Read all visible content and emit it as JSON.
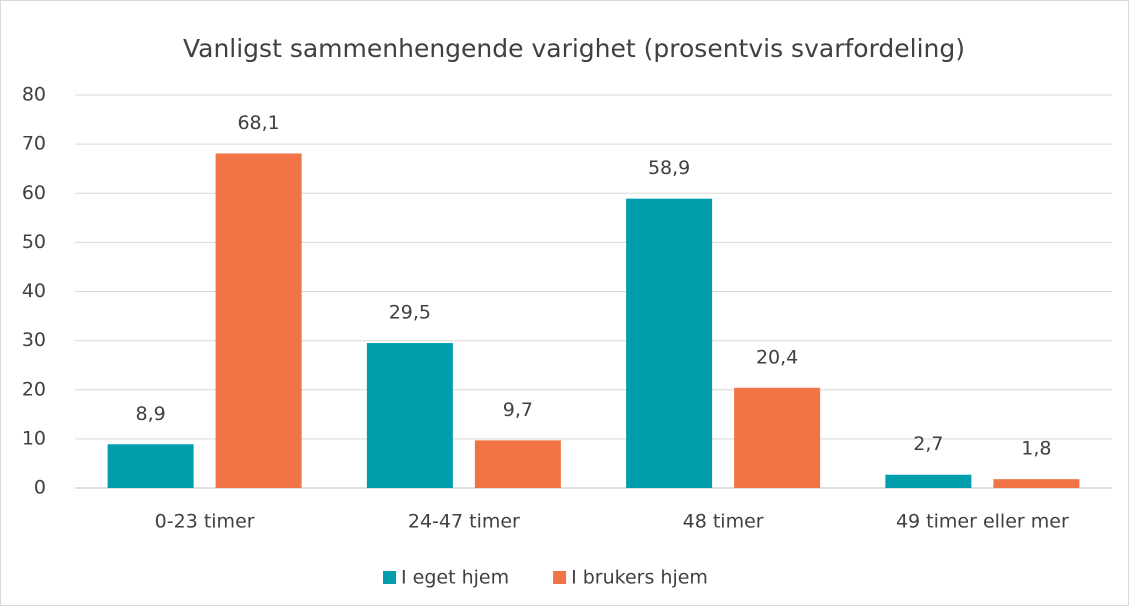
{
  "chart_data": {
    "type": "bar",
    "title": "Vanligst sammenhengende varighet (prosentvis svarfordeling)",
    "categories": [
      "0-23 timer",
      "24-47 timer",
      "48 timer",
      "49 timer eller mer"
    ],
    "series": [
      {
        "name": "I eget hjem",
        "color": "#009ead",
        "values": [
          8.9,
          29.5,
          58.9,
          2.7
        ],
        "value_labels": [
          "8,9",
          "29,5",
          "58,9",
          "2,7"
        ]
      },
      {
        "name": "I brukers hjem",
        "color": "#f07446",
        "values": [
          68.1,
          9.7,
          20.4,
          1.8
        ],
        "value_labels": [
          "68,1",
          "9,7",
          "20,4",
          "1,8"
        ]
      }
    ],
    "ylim": [
      0,
      80
    ],
    "yticks": [
      0,
      10,
      20,
      30,
      40,
      50,
      60,
      70,
      80
    ],
    "grid": true,
    "legend": "bottom"
  }
}
